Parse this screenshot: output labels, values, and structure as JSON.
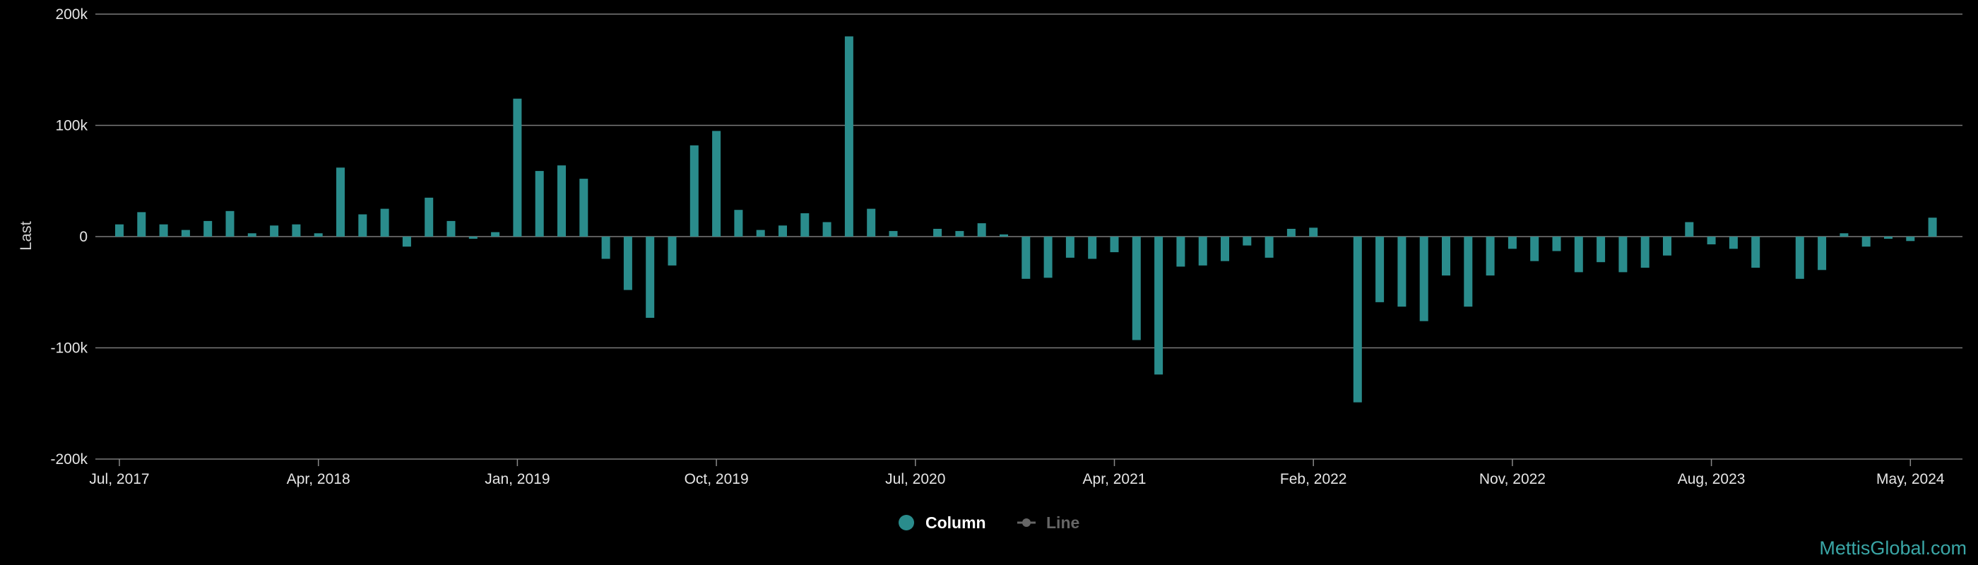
{
  "chart_data": {
    "type": "bar",
    "ylabel": "Last",
    "ylim": [
      -200000,
      200000
    ],
    "y_ticks": [
      {
        "value": 200000,
        "label": "200k"
      },
      {
        "value": 100000,
        "label": "100k"
      },
      {
        "value": 0,
        "label": "0"
      },
      {
        "value": -100000,
        "label": "-100k"
      },
      {
        "value": -200000,
        "label": "-200k"
      }
    ],
    "x_ticks": [
      "Jul, 2017",
      "Apr, 2018",
      "Jan, 2019",
      "Oct, 2019",
      "Jul, 2020",
      "Apr, 2021",
      "Feb, 2022",
      "Nov, 2022",
      "Aug, 2023",
      "May, 2024"
    ],
    "x_tick_index": [
      0,
      9,
      18,
      27,
      36,
      45,
      54,
      63,
      72,
      81
    ],
    "grid": true,
    "bar_color": "#2a8c8c",
    "legend_position": "bottom-center",
    "series": [
      {
        "name": "Column",
        "values": [
          11000,
          22000,
          11000,
          6000,
          14000,
          23000,
          3000,
          10000,
          11000,
          3000,
          62000,
          20000,
          25000,
          -9000,
          35000,
          14000,
          -2000,
          4000,
          124000,
          59000,
          64000,
          52000,
          -20000,
          -48000,
          -73000,
          -26000,
          82000,
          95000,
          24000,
          6000,
          10000,
          21000,
          13000,
          180000,
          25000,
          5000,
          0,
          7000,
          5000,
          12000,
          2000,
          -38000,
          -37000,
          -19000,
          -20000,
          -14000,
          -93000,
          -124000,
          -27000,
          -26000,
          -22000,
          -8000,
          -19000,
          7000,
          8000,
          0,
          -149000,
          -59000,
          -63000,
          -76000,
          -35000,
          -63000,
          -35000,
          -11000,
          -22000,
          -13000,
          -32000,
          -23000,
          -32000,
          -28000,
          -17000,
          13000,
          -7000,
          -11000,
          -28000,
          0,
          -38000,
          -30000,
          3000,
          -9000,
          -2000,
          -4000,
          17000
        ]
      },
      {
        "name": "Line",
        "values": []
      }
    ],
    "legend": [
      {
        "name": "Column",
        "color": "#2a8c8c",
        "active": true
      },
      {
        "name": "Line",
        "color": "#666666",
        "active": false
      }
    ]
  },
  "watermark": "MettisGlobal.com"
}
